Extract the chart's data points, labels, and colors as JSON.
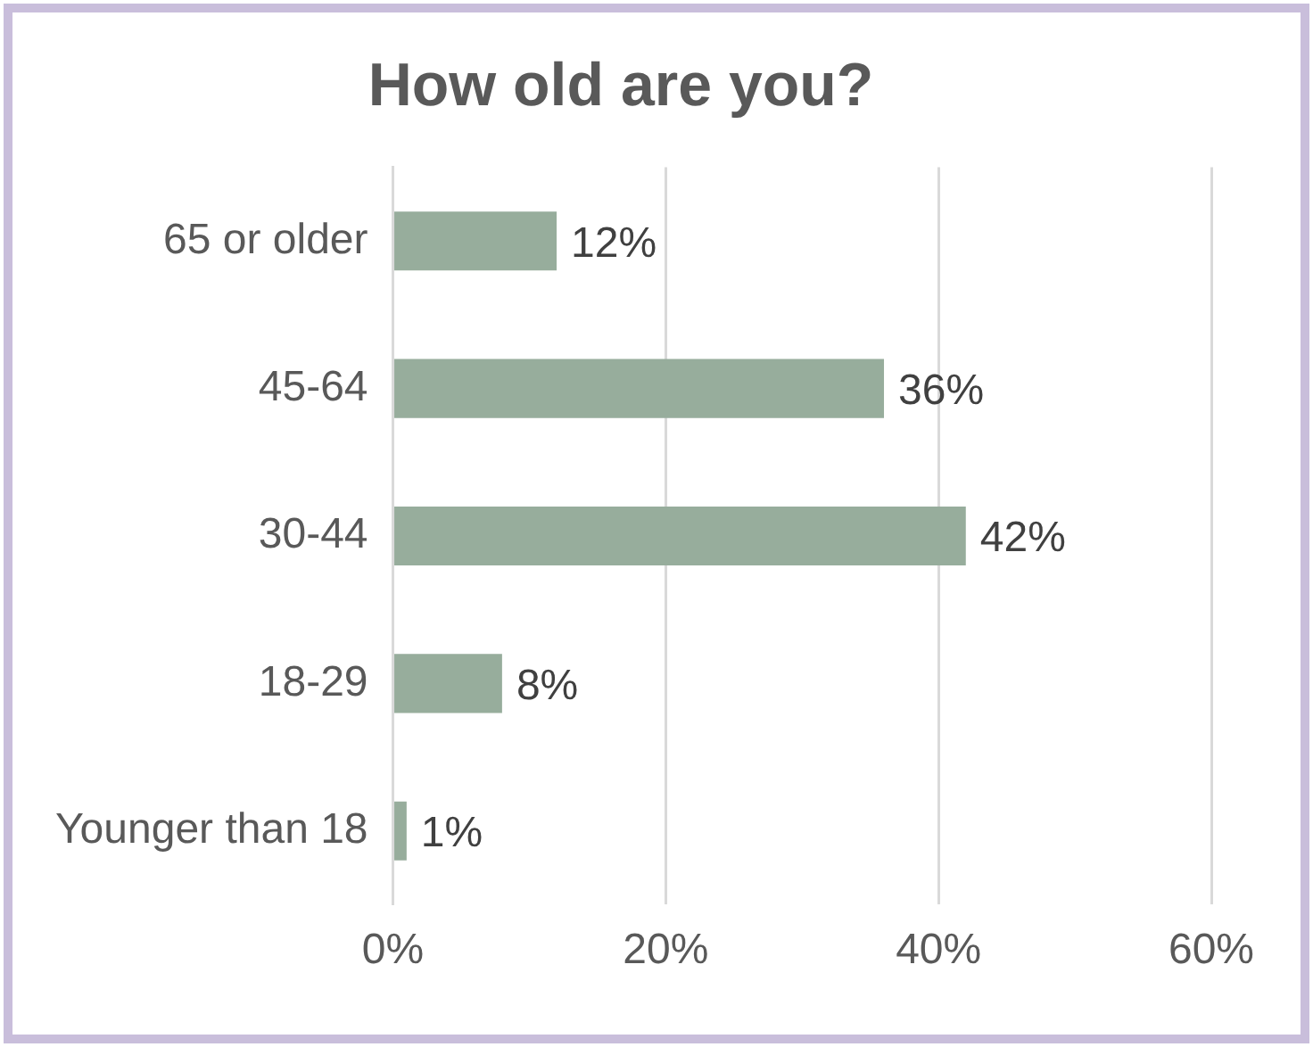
{
  "chart_data": {
    "type": "bar",
    "orientation": "horizontal",
    "title": "How old are you?",
    "categories": [
      "65 or older",
      "45-64",
      "30-44",
      "18-29",
      "Younger than 18"
    ],
    "values": [
      12,
      36,
      42,
      8,
      1
    ],
    "color": "#97ad9c",
    "value_labels": [
      "12%",
      "36%",
      "42%",
      "8%",
      "1%"
    ],
    "xlim": [
      0,
      60
    ],
    "xticks": [
      {
        "value": 0,
        "label": "0%"
      },
      {
        "value": 20,
        "label": "20%"
      },
      {
        "value": 40,
        "label": "40%"
      },
      {
        "value": 60,
        "label": "60%"
      }
    ],
    "grid": "x",
    "legend": false
  }
}
